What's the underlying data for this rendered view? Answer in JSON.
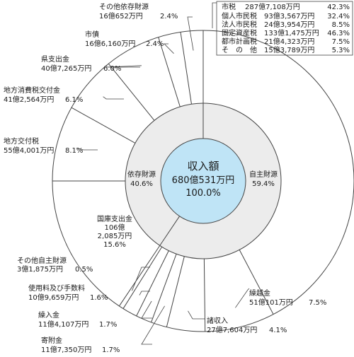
{
  "chart_data": {
    "type": "pie",
    "center": {
      "title": "収入額",
      "total": "680億531万円",
      "percent": "100.0%"
    },
    "inner_ring": [
      {
        "name": "自主財源",
        "percent": 59.4,
        "label_pct": "59.4%"
      },
      {
        "name": "依存財源",
        "percent": 40.6,
        "label_pct": "40.6%"
      }
    ],
    "outer_ring": [
      {
        "name": "市税",
        "amount": "287億7,108万円",
        "percent": 42.3,
        "label_pct": "42.3%",
        "group": "自主財源"
      },
      {
        "name": "繰越金",
        "amount": "51億101万円",
        "percent": 7.5,
        "label_pct": "7.5%",
        "group": "自主財源"
      },
      {
        "name": "諸収入",
        "amount": "27億7,604万円",
        "percent": 4.1,
        "label_pct": "4.1%",
        "group": "自主財源"
      },
      {
        "name": "寄附金",
        "amount": "11億7,350万円",
        "percent": 1.7,
        "label_pct": "1.7%",
        "group": "自主財源"
      },
      {
        "name": "繰入金",
        "amount": "11億4,107万円",
        "percent": 1.7,
        "label_pct": "1.7%",
        "group": "自主財源"
      },
      {
        "name": "使用料及び手数料",
        "amount": "10億9,659万円",
        "percent": 1.6,
        "label_pct": "1.6%",
        "group": "自主財源"
      },
      {
        "name": "その他自主財源",
        "amount": "3億1,875万円",
        "percent": 0.5,
        "label_pct": "0.5%",
        "group": "自主財源"
      },
      {
        "name": "国庫支出金",
        "amount_lines": [
          "106億",
          "2,085万円"
        ],
        "percent": 15.6,
        "label_pct": "15.6%",
        "group": "依存財源"
      },
      {
        "name": "地方交付税",
        "amount": "55億4,001万円",
        "percent": 8.1,
        "label_pct": "8.1%",
        "group": "依存財源"
      },
      {
        "name": "地方消費税交付金",
        "amount": "41億2,564万円",
        "percent": 6.1,
        "label_pct": "6.1%",
        "group": "依存財源"
      },
      {
        "name": "県支出金",
        "amount": "40億7,265万円",
        "percent": 6.0,
        "label_pct": "6.0%",
        "group": "依存財源"
      },
      {
        "name": "市債",
        "amount": "16億6,160万円",
        "percent": 2.4,
        "label_pct": "2.4%",
        "group": "依存財源"
      },
      {
        "name": "その他依存財源",
        "amount": "16億652万円",
        "percent": 2.4,
        "label_pct": "2.4%",
        "group": "依存財源"
      }
    ],
    "city_tax_breakdown": {
      "header": {
        "name": "市税",
        "amount": "287億7,108万円",
        "pct": "42.3%"
      },
      "rows": [
        {
          "name": "個人市民税",
          "amount": "93億3,567万円",
          "pct": "32.4%"
        },
        {
          "name": "法人市民税",
          "amount": "24億3,954万円",
          "pct": "8.5%"
        },
        {
          "name": "固定資産税",
          "amount": "133億1,475万円",
          "pct": "46.3%"
        },
        {
          "name": "都市計画税",
          "amount": "21億4,323万円",
          "pct": "7.5%"
        },
        {
          "name": "そ　の　他",
          "amount": "15億3,789万円",
          "pct": "5.3%"
        }
      ]
    },
    "colors": {
      "outer_ring": "#ffffff",
      "inner_ring": "#ececec",
      "center": "#bfe4f6",
      "line": "#444444"
    }
  }
}
